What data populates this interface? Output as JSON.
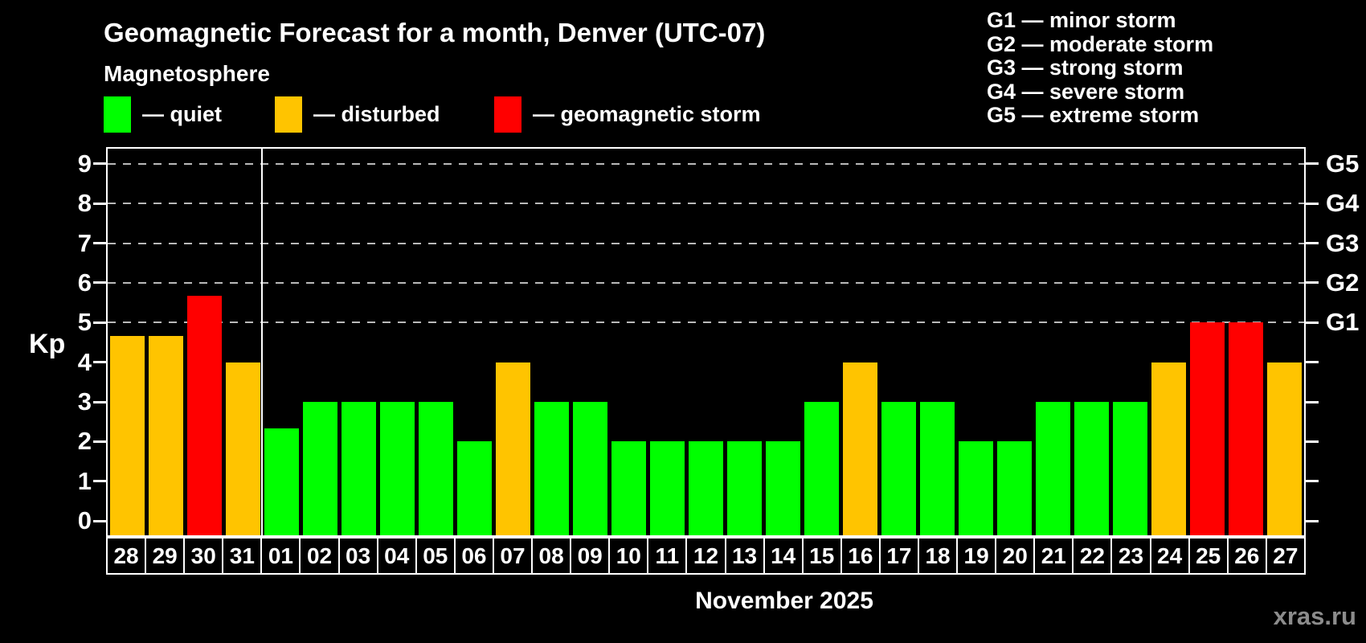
{
  "title": "Geomagnetic Forecast for a month, Denver (UTC-07)",
  "subtitle": "Magnetosphere",
  "legend": {
    "items": [
      {
        "key": "quiet",
        "label": "— quiet",
        "color": "#00ff00",
        "x": 129
      },
      {
        "key": "disturbed",
        "label": "— disturbed",
        "color": "#ffc400",
        "x": 342
      },
      {
        "key": "storm",
        "label": "— geomagnetic storm",
        "color": "#ff0000",
        "x": 615
      }
    ]
  },
  "g_legend": {
    "lines": [
      "G1 — minor storm",
      "G2 — moderate storm",
      "G3 — strong storm",
      "G4 — severe storm",
      "G5 — extreme storm"
    ]
  },
  "chart_data": {
    "type": "bar",
    "title": "Geomagnetic Forecast for a month, Denver (UTC-07)",
    "ylabel": "Kp",
    "xlabel": "November 2025",
    "categories": [
      "28",
      "29",
      "30",
      "31",
      "01",
      "02",
      "03",
      "04",
      "05",
      "06",
      "07",
      "08",
      "09",
      "10",
      "11",
      "12",
      "13",
      "14",
      "15",
      "16",
      "17",
      "18",
      "19",
      "20",
      "21",
      "22",
      "23",
      "24",
      "25",
      "26",
      "27"
    ],
    "values": [
      4.67,
      4.67,
      5.67,
      4,
      2.33,
      3,
      3,
      3,
      3,
      2,
      4,
      3,
      3,
      2,
      2,
      2,
      2,
      2,
      3,
      4,
      3,
      3,
      2,
      2,
      3,
      3,
      3,
      4,
      5,
      5,
      4
    ],
    "statuses": [
      "disturbed",
      "disturbed",
      "storm",
      "disturbed",
      "quiet",
      "quiet",
      "quiet",
      "quiet",
      "quiet",
      "quiet",
      "disturbed",
      "quiet",
      "quiet",
      "quiet",
      "quiet",
      "quiet",
      "quiet",
      "quiet",
      "quiet",
      "disturbed",
      "quiet",
      "quiet",
      "quiet",
      "quiet",
      "quiet",
      "quiet",
      "quiet",
      "disturbed",
      "storm",
      "storm",
      "disturbed"
    ],
    "status_colors": {
      "quiet": "#00ff00",
      "disturbed": "#ffc400",
      "storm": "#ff0000"
    },
    "y_ticks": [
      0,
      1,
      2,
      3,
      4,
      5,
      6,
      7,
      8,
      9
    ],
    "gridlines": [
      5,
      6,
      7,
      8,
      9
    ],
    "right_axis_labels": {
      "5": "G1",
      "6": "G2",
      "7": "G3",
      "8": "G4",
      "9": "G5"
    },
    "ylim": [
      -0.36,
      9.38
    ],
    "month_separator_after_index": 3,
    "grid_color": "#b9b9b9",
    "legend_position": "top"
  },
  "watermark": "xras.ru"
}
